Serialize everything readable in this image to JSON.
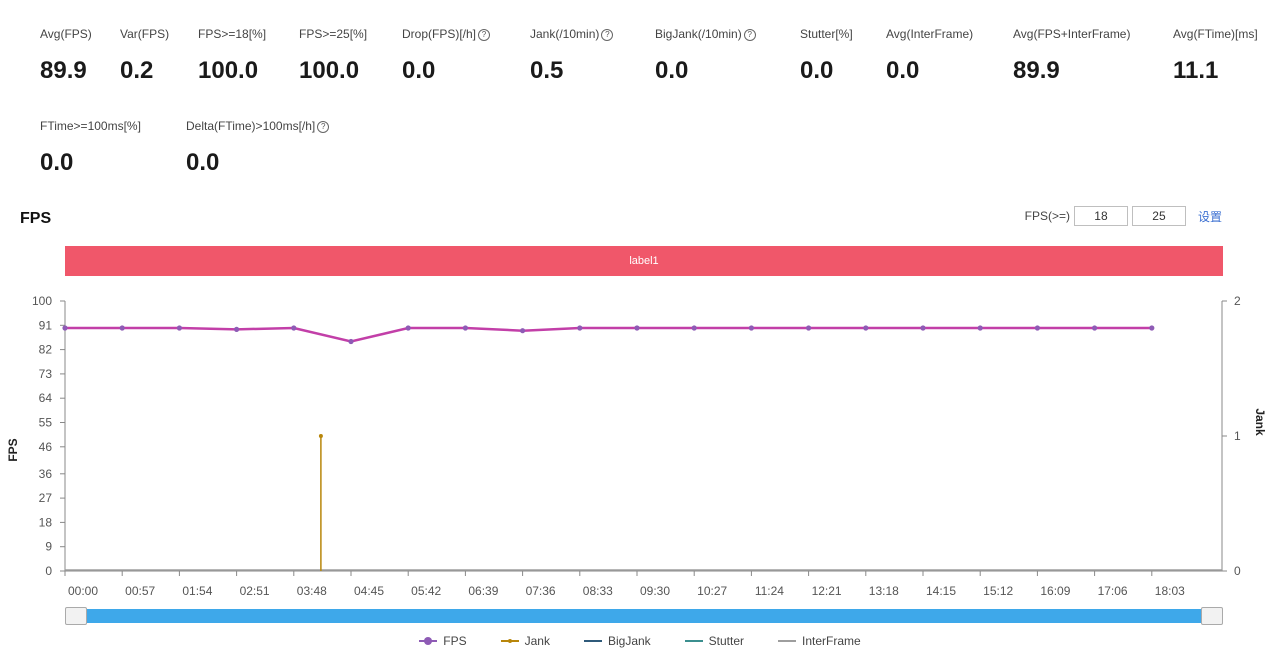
{
  "metrics": {
    "row1": [
      {
        "label": "Avg(FPS)",
        "value": "89.9",
        "icon": ""
      },
      {
        "label": "Var(FPS)",
        "value": "0.2",
        "icon": ""
      },
      {
        "label": "FPS>=18[%]",
        "value": "100.0",
        "icon": ""
      },
      {
        "label": "FPS>=25[%]",
        "value": "100.0",
        "icon": ""
      },
      {
        "label": "Drop(FPS)[/h]",
        "value": "0.0",
        "icon": "info-icon"
      },
      {
        "label": "Jank(/10min)",
        "value": "0.5",
        "icon": "info-icon"
      },
      {
        "label": "BigJank(/10min)",
        "value": "0.0",
        "icon": "info-icon"
      },
      {
        "label": "Stutter[%]",
        "value": "0.0",
        "icon": ""
      },
      {
        "label": "Avg(InterFrame)",
        "value": "0.0",
        "icon": ""
      },
      {
        "label": "Avg(FPS+InterFrame)",
        "value": "89.9",
        "icon": ""
      },
      {
        "label": "Avg(FTime)[ms]",
        "value": "11.1",
        "icon": ""
      }
    ],
    "row2": [
      {
        "label": "FTime>=100ms[%]",
        "value": "0.0",
        "icon": ""
      },
      {
        "label": "Delta(FTime)>100ms[/h]",
        "value": "0.0",
        "icon": "info-icon"
      }
    ]
  },
  "fps_section": {
    "title": "FPS",
    "threshold_label": "FPS(>=)",
    "threshold_1": "18",
    "threshold_2": "25",
    "threshold_set": "设置",
    "band_label": "label1"
  },
  "colors": {
    "fps": "#c23fa8",
    "fps_point": "#8e5bb5",
    "jank": "#b8860b",
    "bigjank": "#2f5a7a",
    "stutter": "#3b8f8f",
    "interframe": "#9e9e9e",
    "band": "#f0576a",
    "slider": "#3ea8ea"
  },
  "chart_data": {
    "type": "line",
    "x": [
      "00:00",
      "00:57",
      "01:54",
      "02:51",
      "03:48",
      "04:45",
      "05:42",
      "06:39",
      "07:36",
      "08:33",
      "09:30",
      "10:27",
      "11:24",
      "12:21",
      "13:18",
      "14:15",
      "15:12",
      "16:09",
      "17:06",
      "18:03"
    ],
    "ylabel": "FPS",
    "y2label": "Jank",
    "ylim": [
      0,
      100
    ],
    "y_ticks": [
      "0",
      "9",
      "18",
      "27",
      "36",
      "46",
      "55",
      "64",
      "73",
      "82",
      "91",
      "100"
    ],
    "y2lim": [
      0,
      2
    ],
    "y2_ticks": [
      "0",
      "1",
      "2"
    ],
    "series": [
      {
        "name": "FPS",
        "axis": "left",
        "values": [
          90,
          90,
          90,
          89.5,
          90,
          85,
          90,
          90,
          89,
          90,
          90,
          90,
          90,
          90,
          90,
          90,
          90,
          90,
          90,
          90
        ]
      },
      {
        "name": "Jank",
        "axis": "right",
        "events": [
          {
            "x": "04:15",
            "value": 1
          }
        ]
      },
      {
        "name": "BigJank",
        "axis": "right",
        "values": [
          0,
          0,
          0,
          0,
          0,
          0,
          0,
          0,
          0,
          0,
          0,
          0,
          0,
          0,
          0,
          0,
          0,
          0,
          0,
          0
        ]
      },
      {
        "name": "Stutter",
        "axis": "right",
        "values": [
          0,
          0,
          0,
          0,
          0,
          0,
          0,
          0,
          0,
          0,
          0,
          0,
          0,
          0,
          0,
          0,
          0,
          0,
          0,
          0
        ]
      },
      {
        "name": "InterFrame",
        "axis": "left",
        "values": [
          0,
          0,
          0,
          0,
          0,
          0,
          0,
          0,
          0,
          0,
          0,
          0,
          0,
          0,
          0,
          0,
          0,
          0,
          0,
          0
        ]
      }
    ],
    "legend_position": "bottom",
    "grid": false
  }
}
